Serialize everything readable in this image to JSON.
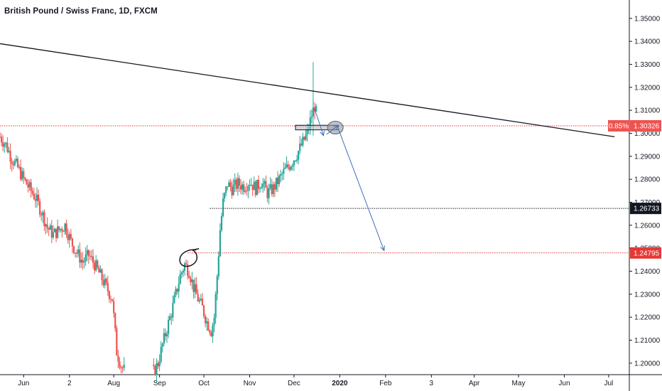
{
  "chart_data": {
    "type": "candlestick",
    "title": "British Pound / Swiss Franc, 1D, FXCM",
    "y_range": [
      1.195,
      1.358
    ],
    "y_ticks": [
      "1.20000",
      "1.21000",
      "1.22000",
      "1.23000",
      "1.24000",
      "1.25000",
      "1.26000",
      "1.27000",
      "1.28000",
      "1.29000",
      "1.30000",
      "1.31000",
      "1.32000",
      "1.33000",
      "1.34000",
      "1.35000"
    ],
    "x_ticks": [
      {
        "label": "Jun",
        "date": "2019-06-01"
      },
      {
        "label": "2",
        "date": "2019-07-02"
      },
      {
        "label": "Aug",
        "date": "2019-08-01"
      },
      {
        "label": "Sep",
        "date": "2019-09-01"
      },
      {
        "label": "Oct",
        "date": "2019-10-01"
      },
      {
        "label": "Nov",
        "date": "2019-11-01"
      },
      {
        "label": "Dec",
        "date": "2019-12-01"
      },
      {
        "label": "2020",
        "date": "2020-01-01",
        "bold": true
      },
      {
        "label": "Feb",
        "date": "2020-02-01"
      },
      {
        "label": "3",
        "date": "2020-03-03"
      },
      {
        "label": "Apr",
        "date": "2020-04-01"
      },
      {
        "label": "May",
        "date": "2020-05-01"
      },
      {
        "label": "Jun",
        "date": "2020-06-01"
      },
      {
        "label": "Jul",
        "date": "2020-07-01"
      }
    ],
    "x_range": [
      "2019-05-16",
      "2020-07-15"
    ],
    "colors": {
      "up": "#26a69a",
      "down": "#ef5350",
      "axis": "#131722",
      "red": "#e53935",
      "blue": "#3d6fb8"
    },
    "closes": [
      [
        "2019-05-16",
        1.2985
      ],
      [
        "2019-05-20",
        1.295
      ],
      [
        "2019-05-24",
        1.289
      ],
      [
        "2019-05-28",
        1.285
      ],
      [
        "2019-06-01",
        1.28
      ],
      [
        "2019-06-05",
        1.276
      ],
      [
        "2019-06-09",
        1.272
      ],
      [
        "2019-06-13",
        1.266
      ],
      [
        "2019-06-17",
        1.259
      ],
      [
        "2019-06-21",
        1.256
      ],
      [
        "2019-06-25",
        1.258
      ],
      [
        "2019-06-29",
        1.26
      ],
      [
        "2019-07-03",
        1.253
      ],
      [
        "2019-07-07",
        1.248
      ],
      [
        "2019-07-11",
        1.244
      ],
      [
        "2019-07-15",
        1.247
      ],
      [
        "2019-07-19",
        1.243
      ],
      [
        "2019-07-23",
        1.238
      ],
      [
        "2019-07-27",
        1.233
      ],
      [
        "2019-07-31",
        1.228
      ],
      [
        "2019-08-03",
        1.205
      ],
      [
        "2019-08-06",
        1.199
      ],
      [
        "2019-08-09",
        1.196
      ],
      [
        "2019-08-28",
        1.196
      ],
      [
        "2019-08-31",
        1.2
      ],
      [
        "2019-09-03",
        1.208
      ],
      [
        "2019-09-06",
        1.215
      ],
      [
        "2019-09-09",
        1.222
      ],
      [
        "2019-09-12",
        1.23
      ],
      [
        "2019-09-15",
        1.238
      ],
      [
        "2019-09-18",
        1.243
      ],
      [
        "2019-09-21",
        1.24
      ],
      [
        "2019-09-24",
        1.233
      ],
      [
        "2019-09-27",
        1.228
      ],
      [
        "2019-09-30",
        1.224
      ],
      [
        "2019-10-03",
        1.218
      ],
      [
        "2019-10-06",
        1.214
      ],
      [
        "2019-10-08",
        1.22
      ],
      [
        "2019-10-10",
        1.238
      ],
      [
        "2019-10-12",
        1.258
      ],
      [
        "2019-10-14",
        1.27
      ],
      [
        "2019-10-17",
        1.278
      ],
      [
        "2019-10-20",
        1.276
      ],
      [
        "2019-10-24",
        1.278
      ],
      [
        "2019-10-28",
        1.277
      ],
      [
        "2019-11-01",
        1.279
      ],
      [
        "2019-11-05",
        1.276
      ],
      [
        "2019-11-09",
        1.279
      ],
      [
        "2019-11-13",
        1.274
      ],
      [
        "2019-11-17",
        1.276
      ],
      [
        "2019-11-21",
        1.28
      ],
      [
        "2019-11-25",
        1.284
      ],
      [
        "2019-11-29",
        1.287
      ],
      [
        "2019-12-03",
        1.291
      ],
      [
        "2019-12-07",
        1.296
      ],
      [
        "2019-12-10",
        1.3
      ],
      [
        "2019-12-13",
        1.308
      ],
      [
        "2019-12-15",
        1.312
      ],
      [
        "2019-12-17",
        1.306
      ]
    ],
    "annotations": {
      "trendline": {
        "from": [
          "2019-05-16",
          1.339
        ],
        "to": [
          "2020-07-05",
          1.2985
        ],
        "color": "#131722"
      },
      "h_lines": [
        {
          "price": 1.30326,
          "from": "2019-05-16",
          "style": "dotted",
          "color": "#e53935"
        },
        {
          "price": 1.26733,
          "from": "2019-10-05",
          "style": "dotted",
          "color": "#131722"
        },
        {
          "price": 1.24795,
          "from": "2019-09-20",
          "style": "dotted",
          "color": "#e53935"
        }
      ],
      "zone_rect": {
        "from": "2019-12-02",
        "to": "2019-12-31",
        "y0": 1.3015,
        "y1": 1.3035
      },
      "ellipses": [
        {
          "date": "2019-12-29",
          "price": 1.3025,
          "label": "grey"
        },
        {
          "date": "2019-09-20",
          "price": 1.2455,
          "label": "black-circle"
        }
      ],
      "arrows": [
        {
          "from": [
            "2019-12-15",
            1.3105
          ],
          "to": [
            "2019-12-21",
            1.299
          ]
        },
        {
          "from": [
            "2019-12-23",
            1.2995
          ],
          "to": [
            "2019-12-31",
            1.3035
          ]
        },
        {
          "from": [
            "2019-12-31",
            1.302
          ],
          "to": [
            "2020-01-31",
            1.249
          ]
        }
      ]
    },
    "price_tags": [
      {
        "price": 1.30326,
        "label": "1.30326",
        "prefix": "0.85%",
        "bg": "#ef5350",
        "fg": "#ffffff"
      },
      {
        "price": 1.26733,
        "label": "1.26733",
        "bg": "#131722",
        "fg": "#ffffff"
      },
      {
        "price": 1.24795,
        "label": "1.24795",
        "bg": "#e53935",
        "fg": "#ffffff"
      }
    ]
  }
}
